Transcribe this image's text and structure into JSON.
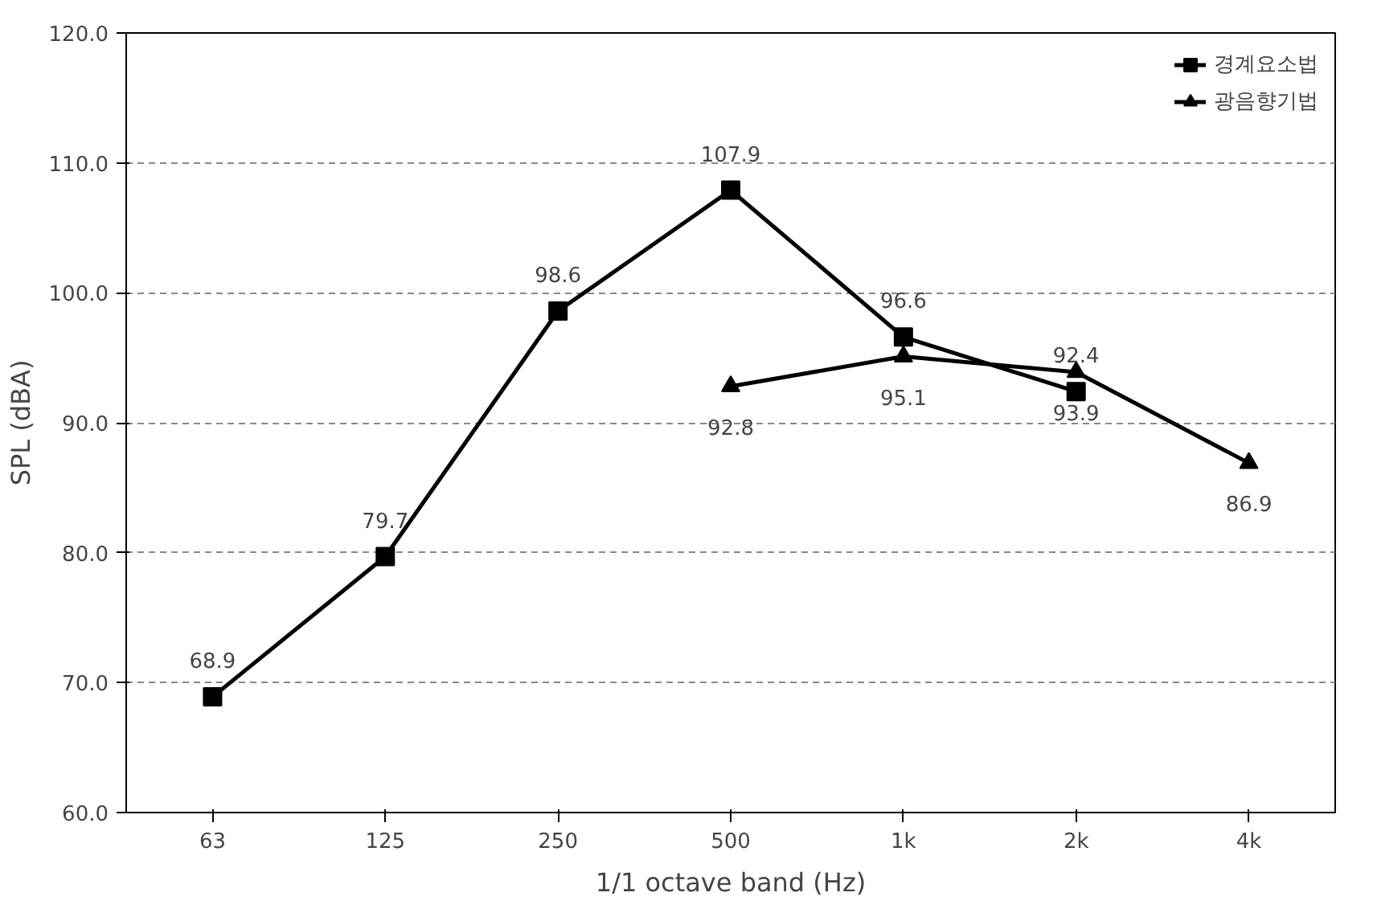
{
  "chart_data": {
    "type": "line",
    "xlabel": "1/1 octave band (Hz)",
    "ylabel": "SPL (dBA)",
    "categories": [
      "63",
      "125",
      "250",
      "500",
      "1k",
      "2k",
      "4k"
    ],
    "series": [
      {
        "name": "경계요소법",
        "color": "#000000",
        "marker": "square",
        "values": [
          68.9,
          79.7,
          98.6,
          107.9,
          96.6,
          92.4,
          null
        ]
      },
      {
        "name": "광음향기법",
        "color": "#000000",
        "marker": "triangle",
        "values": [
          null,
          null,
          null,
          92.8,
          95.1,
          93.9,
          86.9
        ]
      }
    ],
    "ylim": [
      60,
      120
    ],
    "yticks": [
      {
        "value": 60,
        "label": "60.0"
      },
      {
        "value": 70,
        "label": "70.0"
      },
      {
        "value": 80,
        "label": "80.0"
      },
      {
        "value": 90,
        "label": "90.0"
      },
      {
        "value": 100,
        "label": "100.0"
      },
      {
        "value": 110,
        "label": "110.0"
      },
      {
        "value": 120,
        "label": "120.0"
      }
    ],
    "grid": "y",
    "legend": "top right",
    "data_labels": true,
    "line_style": "solid"
  }
}
